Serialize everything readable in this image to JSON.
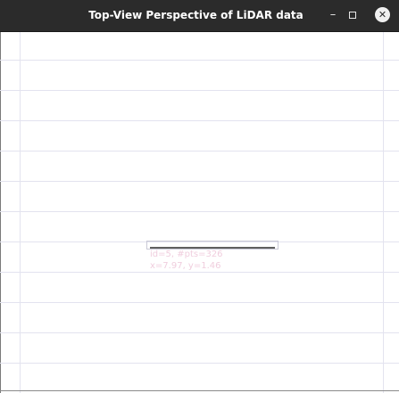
{
  "window": {
    "title": "Top-View Perspective of LiDAR data",
    "minimize_glyph": "–",
    "close_glyph": "✕"
  },
  "icons": {
    "minimize": "minimize-icon",
    "maximize": "maximize-icon",
    "close": "close-icon"
  },
  "colors": {
    "titlebar": "#2b2b2b",
    "canvas": "#ffffff",
    "grid": "#e3e3ef",
    "object_label": "#f0cede",
    "points": "#2b2b2b"
  },
  "detected_object": {
    "line1": "id=5, #pts=326",
    "line2": "x=7.97, y=1.46"
  }
}
